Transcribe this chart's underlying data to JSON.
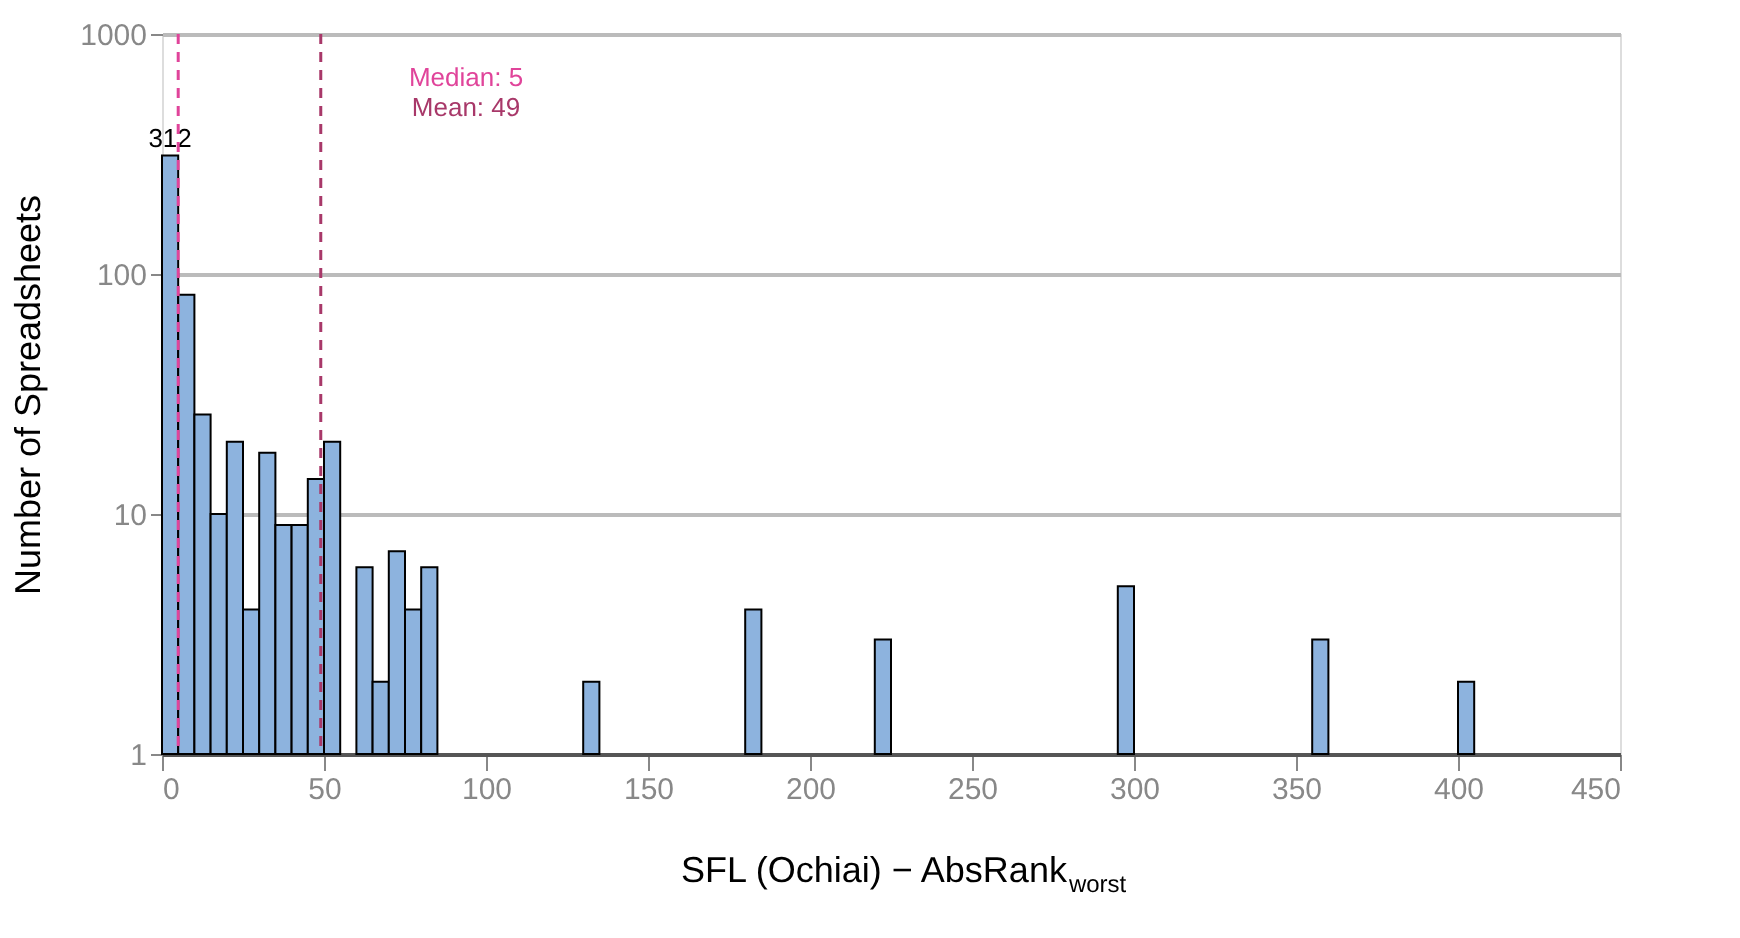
{
  "chart_data": {
    "type": "histogram",
    "xlabel": "SFL (Ochiai) − AbsRank$_{worst}$",
    "ylabel": "Number of Spreadsheets",
    "bins": [
      0,
      5,
      10,
      15,
      20,
      25,
      30,
      35,
      40,
      45,
      50,
      55,
      60,
      65,
      70,
      75,
      80,
      85,
      90,
      95,
      100,
      105,
      110,
      115,
      120,
      125,
      130,
      135,
      140,
      145,
      150,
      155,
      160,
      165,
      170,
      175,
      180,
      185,
      190,
      195,
      200,
      205,
      210,
      215,
      220,
      225,
      230,
      235,
      240,
      245,
      250,
      255,
      260,
      265,
      270,
      275,
      280,
      285,
      290,
      295,
      300,
      305,
      310,
      315,
      320,
      325,
      330,
      335,
      340,
      345,
      350,
      355,
      360,
      365,
      370,
      375,
      380,
      385,
      390,
      395,
      400,
      405
    ],
    "values": [
      312,
      82,
      26,
      10,
      20,
      4,
      18,
      9,
      9,
      14,
      20,
      null,
      6,
      2,
      7,
      4,
      6,
      null,
      null,
      null,
      null,
      null,
      null,
      null,
      null,
      null,
      2,
      null,
      null,
      null,
      null,
      null,
      null,
      null,
      null,
      null,
      4,
      null,
      null,
      null,
      null,
      null,
      null,
      null,
      3,
      null,
      null,
      null,
      null,
      null,
      null,
      null,
      null,
      null,
      null,
      null,
      null,
      null,
      null,
      5,
      null,
      null,
      null,
      null,
      null,
      null,
      null,
      null,
      null,
      null,
      null,
      3,
      null,
      null,
      null,
      null,
      null,
      null,
      null,
      null,
      2
    ],
    "value_labels": [
      "312",
      null,
      null,
      null,
      null,
      null,
      null,
      null,
      null,
      null,
      null,
      null,
      null,
      null,
      null,
      null,
      null,
      null,
      null,
      null,
      null,
      null,
      null,
      null,
      null,
      null,
      null,
      null,
      null,
      null,
      null,
      null,
      null,
      null,
      null,
      null,
      null,
      null,
      null,
      null,
      null,
      null,
      null,
      null,
      null,
      null,
      null,
      null,
      null,
      null,
      null,
      null,
      null,
      null,
      null,
      null,
      null,
      null,
      null,
      null,
      null,
      null,
      null,
      null,
      null,
      null,
      null,
      null,
      null,
      null,
      null,
      null,
      null,
      null,
      null,
      null,
      null,
      null,
      null,
      null,
      null
    ],
    "color": "#8db3de",
    "log": true,
    "xlim": [
      0,
      450
    ],
    "xticks": [
      0,
      50,
      100,
      150,
      200,
      250,
      300,
      350,
      400,
      450
    ],
    "ylim": [
      1,
      1000
    ],
    "yticks": [
      1,
      10,
      100,
      1000
    ],
    "grid": "y",
    "ref_lines": [
      {
        "axis": "x",
        "value": 5,
        "label": "Median: 5",
        "color": "#e0449a",
        "line_style": "dashed"
      },
      {
        "axis": "x",
        "value": 49,
        "label": "Mean: 49",
        "color": "#a83869",
        "line_style": "dashed"
      }
    ]
  }
}
